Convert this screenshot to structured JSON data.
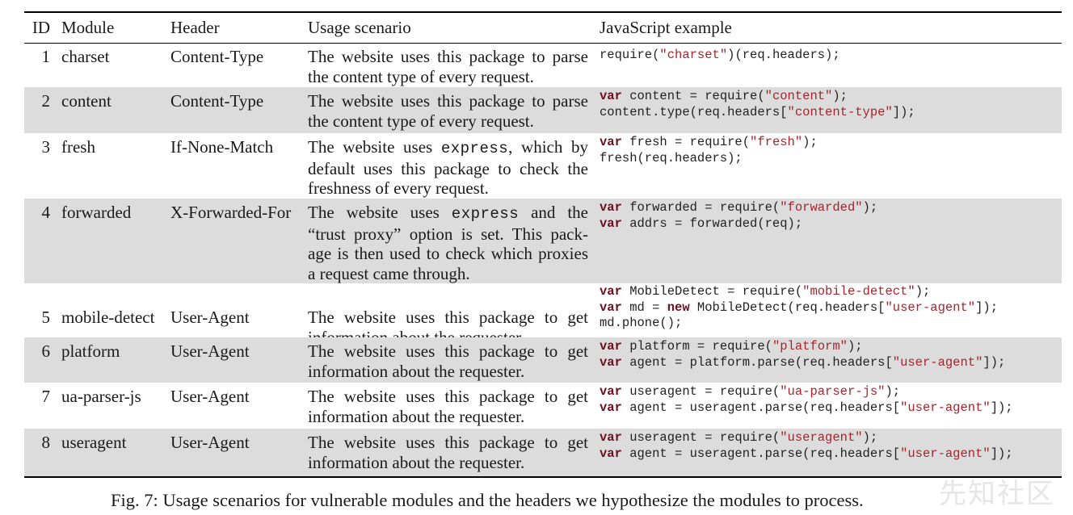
{
  "headers": {
    "id": "ID",
    "module": "Module",
    "header": "Header",
    "usage": "Usage scenario",
    "js": "JavaScript example"
  },
  "rows": [
    {
      "id": "1",
      "module": "charset",
      "header": "Content-Type",
      "usage": [
        "The website uses this package to parse",
        "the content type of every request."
      ],
      "code": [
        [
          [
            "",
            "require("
          ],
          [
            "str",
            "\"charset\""
          ],
          [
            "",
            ")(req.headers);"
          ]
        ]
      ]
    },
    {
      "id": "2",
      "module": "content",
      "header": "Content-Type",
      "usage": [
        "The website uses this package to parse",
        "the content type of every request."
      ],
      "code": [
        [
          [
            "kw",
            "var"
          ],
          [
            "",
            " content = require("
          ],
          [
            "str",
            "\"content\""
          ],
          [
            "",
            ");"
          ]
        ],
        [
          [
            "",
            "content.type(req.headers["
          ],
          [
            "str",
            "\"content-type\""
          ],
          [
            "",
            "]);"
          ]
        ]
      ]
    },
    {
      "id": "3",
      "module": "fresh",
      "header": "If-None-Match",
      "usage": [
        "The website uses |express|, which by",
        "default uses this package to check the",
        "freshness of every request."
      ],
      "code": [
        [
          [
            "kw",
            "var"
          ],
          [
            "",
            " fresh = require("
          ],
          [
            "str",
            "\"fresh\""
          ],
          [
            "",
            ");"
          ]
        ],
        [
          [
            "",
            "fresh(req.headers);"
          ]
        ]
      ]
    },
    {
      "id": "4",
      "module": "forwarded",
      "header": "X-Forwarded-For",
      "usage": [
        "The website uses |express| and the",
        "“trust proxy” option is set. This pack-",
        "age is then used to check which proxies",
        "a request came through."
      ],
      "code": [
        [
          [
            "kw",
            "var"
          ],
          [
            "",
            " forwarded = require("
          ],
          [
            "str",
            "\"forwarded\""
          ],
          [
            "",
            ");"
          ]
        ],
        [
          [
            "kw",
            "var"
          ],
          [
            "",
            " addrs = forwarded(req);"
          ]
        ]
      ]
    },
    {
      "id": "5",
      "module": "mobile-detect",
      "header": "User-Agent",
      "usage": [
        "The website uses this package to get",
        "information about the requester."
      ],
      "code": [
        [
          [
            "kw",
            "var"
          ],
          [
            "",
            " MobileDetect = require("
          ],
          [
            "str",
            "\"mobile-detect\""
          ],
          [
            "",
            ");"
          ]
        ],
        [
          [
            "kw",
            "var"
          ],
          [
            "",
            " md = "
          ],
          [
            "kw",
            "new"
          ],
          [
            "",
            " MobileDetect(req.headers["
          ],
          [
            "str",
            "\"user-agent\""
          ],
          [
            "",
            "]);"
          ]
        ],
        [
          [
            "",
            "md.phone();"
          ]
        ]
      ]
    },
    {
      "id": "6",
      "module": "platform",
      "header": "User-Agent",
      "usage": [
        "The website uses this package to get",
        "information about the requester."
      ],
      "code": [
        [
          [
            "kw",
            "var"
          ],
          [
            "",
            " platform = require("
          ],
          [
            "str",
            "\"platform\""
          ],
          [
            "",
            ");"
          ]
        ],
        [
          [
            "kw",
            "var"
          ],
          [
            "",
            " agent = platform.parse(req.headers["
          ],
          [
            "str",
            "\"user-agent\""
          ],
          [
            "",
            "]);"
          ]
        ]
      ]
    },
    {
      "id": "7",
      "module": "ua-parser-js",
      "header": "User-Agent",
      "usage": [
        "The website uses this package to get",
        "information about the requester."
      ],
      "code": [
        [
          [
            "kw",
            "var"
          ],
          [
            "",
            " useragent = require("
          ],
          [
            "str",
            "\"ua-parser-js\""
          ],
          [
            "",
            ");"
          ]
        ],
        [
          [
            "kw",
            "var"
          ],
          [
            "",
            " agent = useragent.parse(req.headers["
          ],
          [
            "str",
            "\"user-agent\""
          ],
          [
            "",
            "]);"
          ]
        ]
      ]
    },
    {
      "id": "8",
      "module": "useragent",
      "header": "User-Agent",
      "usage": [
        "The website uses this package to get",
        "information about the requester."
      ],
      "code": [
        [
          [
            "kw",
            "var"
          ],
          [
            "",
            " useragent = require("
          ],
          [
            "str",
            "\"useragent\""
          ],
          [
            "",
            ");"
          ]
        ],
        [
          [
            "kw",
            "var"
          ],
          [
            "",
            " agent = useragent.parse(req.headers["
          ],
          [
            "str",
            "\"user-agent\""
          ],
          [
            "",
            "]);"
          ]
        ]
      ]
    }
  ],
  "caption": "Fig. 7: Usage scenarios for vulnerable modules and the headers we hypothesize the modules to process.",
  "watermark": "先知社区",
  "colors": {
    "shade": "#dcdcdc",
    "keyword": "#6b1020",
    "string": "#a4262c"
  }
}
